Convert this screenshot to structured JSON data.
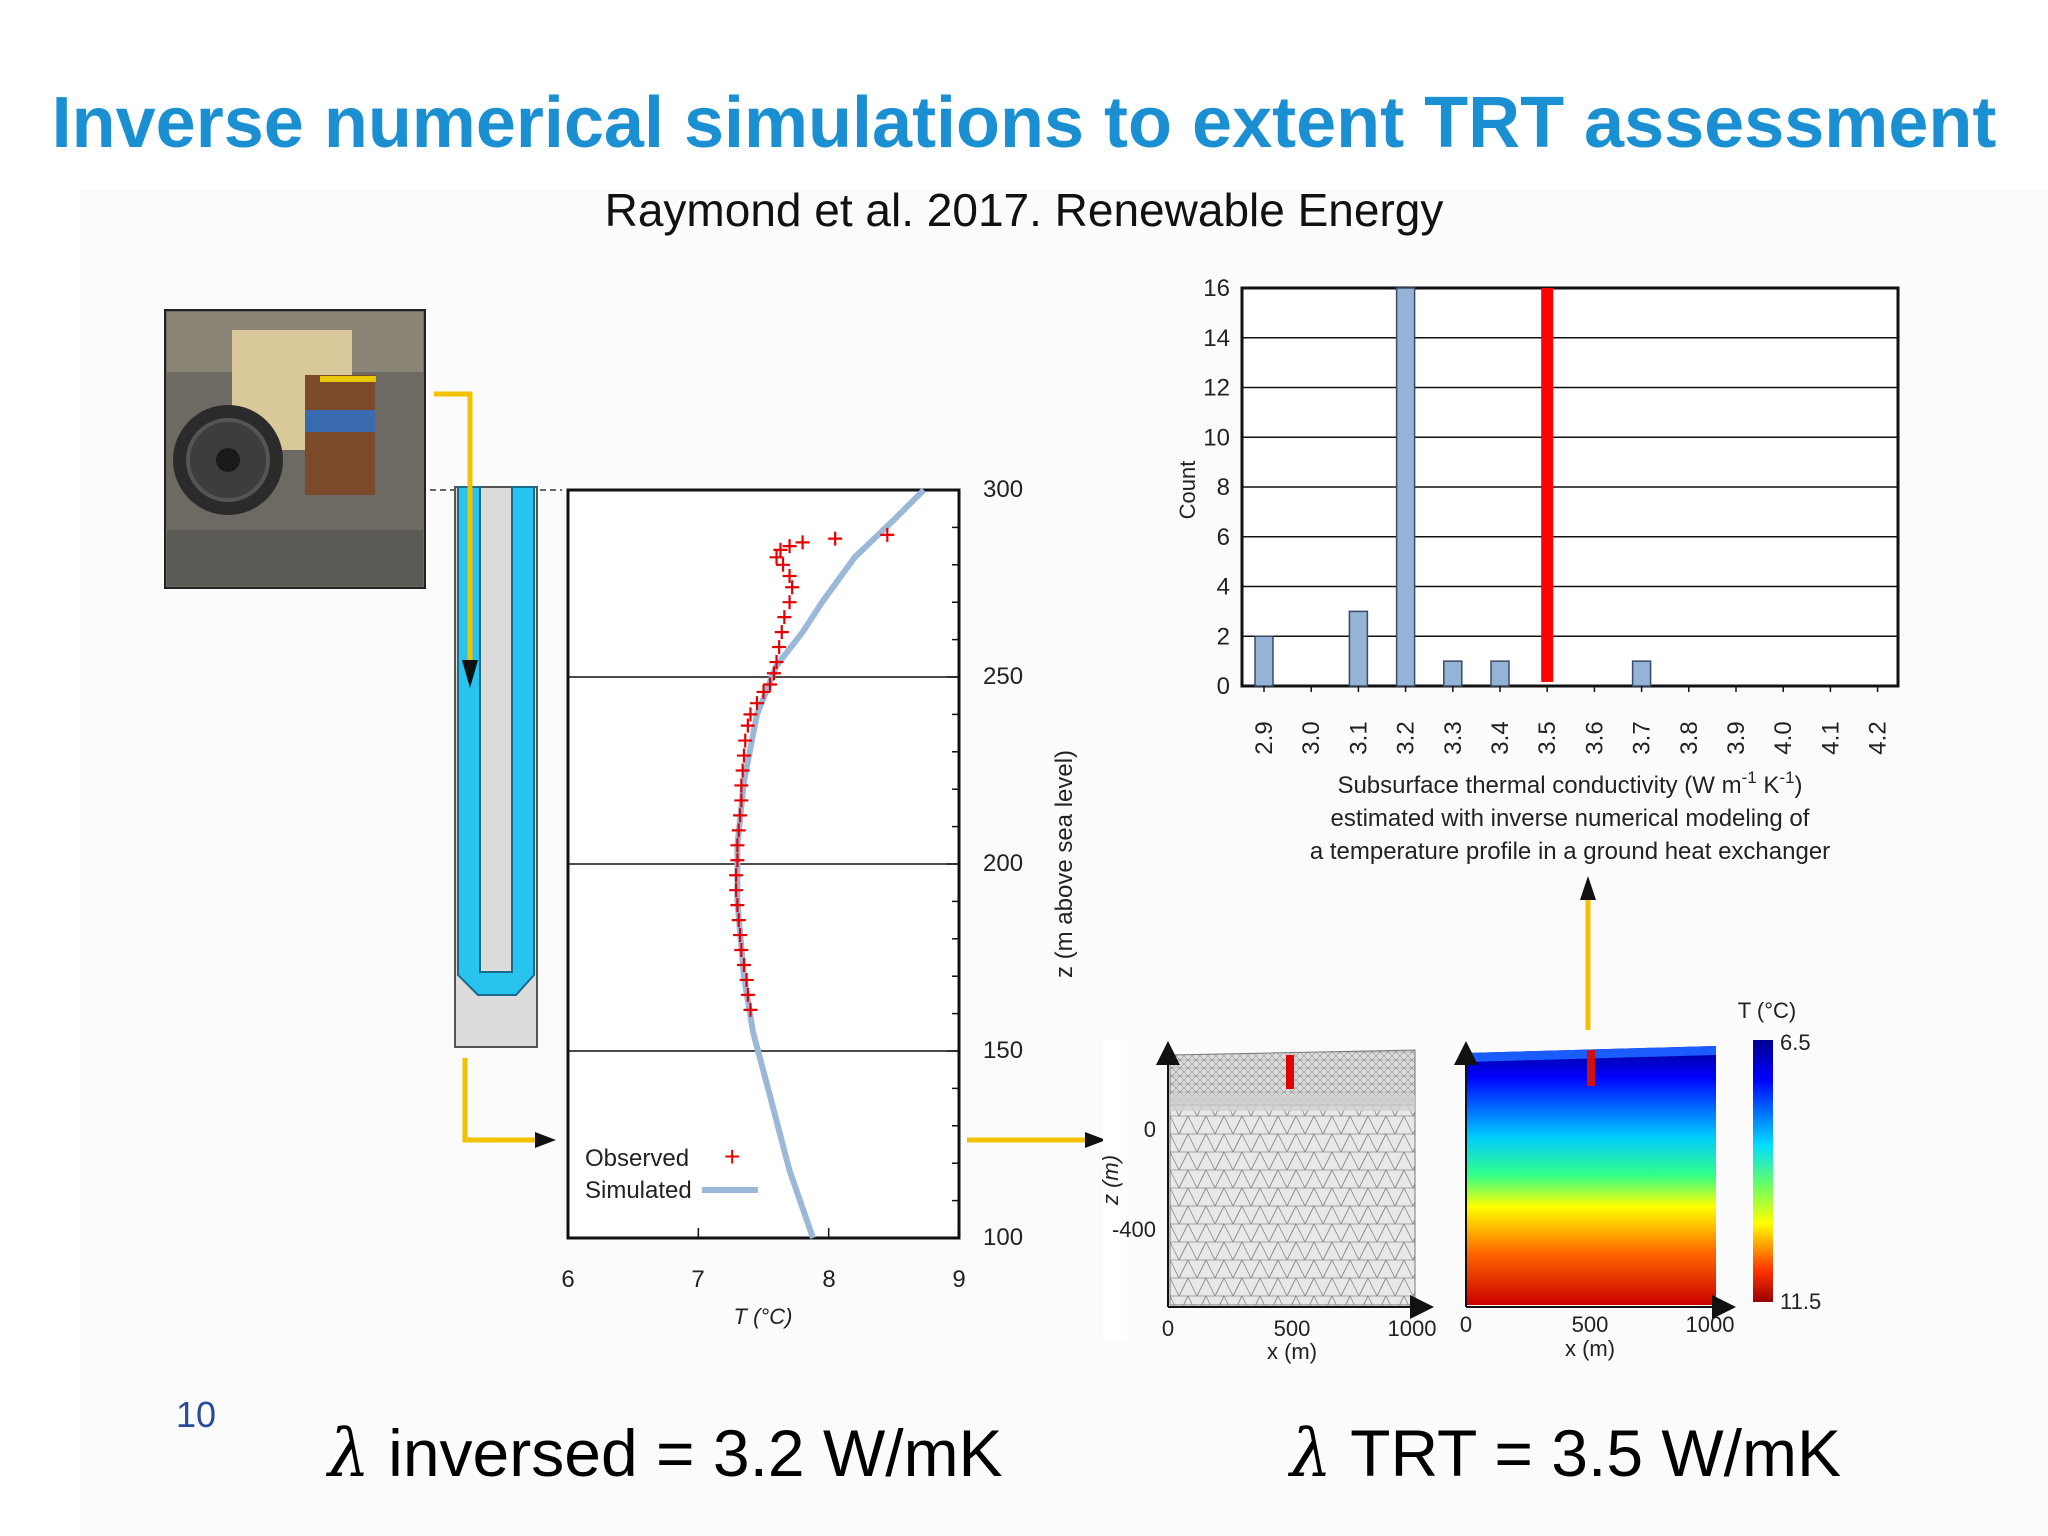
{
  "title": "Inverse numerical simulations to extent TRT assessment",
  "citation": "Raymond et al. 2017. Renewable Energy",
  "page_number": "10",
  "equations": {
    "inverse": {
      "symbol": "λ",
      "text": " inversed = 3.2 W/mK"
    },
    "trt": {
      "symbol": "λ",
      "text": " TRT = 3.5 W/mK"
    }
  },
  "profile_chart": {
    "x_label": "T (°C)",
    "y_label": "z (m above sea level)",
    "x_ticks": [
      "6",
      "7",
      "8",
      "9"
    ],
    "y_ticks": [
      "300",
      "250",
      "200",
      "150",
      "100"
    ],
    "legend_observed": "Observed",
    "legend_simulated": "Simulated"
  },
  "histogram": {
    "y_label": "Count",
    "caption_line1": "Subsurface thermal conductivity (W m",
    "caption_sup1": "-1",
    "caption_mid": " K",
    "caption_sup2": "-1",
    "caption_end": ")",
    "caption_line2": "estimated with inverse numerical modeling of",
    "caption_line3": "a temperature profile in a ground heat exchanger"
  },
  "mesh_panel": {
    "y_label": "z (m)",
    "x_label": "x (m)",
    "y_ticks": [
      "0",
      "-400"
    ],
    "x_ticks": [
      "0",
      "500",
      "1000"
    ]
  },
  "temperature_panel": {
    "x_label": "x (m)",
    "x_ticks": [
      "0",
      "500",
      "1000"
    ],
    "colorbar_title": "T (°C)",
    "colorbar_top": "6.5",
    "colorbar_bottom": "11.5"
  },
  "colors": {
    "title": "#1a8fd1",
    "bar_fill": "#94b3d6",
    "trt_line": "#ff0000",
    "arrow": "#f2c100",
    "observed": "#e60000",
    "simulated": "#9bb8d8"
  },
  "chart_data": [
    {
      "type": "bar",
      "y_label": "Count",
      "categories": [
        "2.9",
        "3.0",
        "3.1",
        "3.2",
        "3.3",
        "3.4",
        "3.5",
        "3.6",
        "3.7",
        "3.8",
        "3.9",
        "4.0",
        "4.1",
        "4.2"
      ],
      "values": [
        2,
        0,
        3,
        16,
        1,
        1,
        0,
        0,
        1,
        0,
        0,
        0,
        0,
        0
      ],
      "ylim": [
        0,
        16
      ],
      "y_ticks": [
        0,
        2,
        4,
        6,
        8,
        10,
        12,
        14,
        16
      ],
      "reference_line": {
        "x": 3.5
      }
    },
    {
      "type": "scatter",
      "x_label": "T (°C)",
      "y_label": "z (m above sea level)",
      "xlim": [
        6,
        9
      ],
      "ylim": [
        100,
        300
      ],
      "grid_y": [
        250,
        200,
        150
      ],
      "series": [
        {
          "name": "Observed",
          "points": [
            [
              8.45,
              288
            ],
            [
              8.05,
              287
            ],
            [
              7.8,
              286
            ],
            [
              7.7,
              285
            ],
            [
              7.63,
              284
            ],
            [
              7.6,
              282
            ],
            [
              7.65,
              280
            ],
            [
              7.7,
              277
            ],
            [
              7.72,
              274
            ],
            [
              7.7,
              270
            ],
            [
              7.66,
              266
            ],
            [
              7.64,
              262
            ],
            [
              7.62,
              258
            ],
            [
              7.6,
              254
            ],
            [
              7.58,
              251
            ],
            [
              7.55,
              248
            ],
            [
              7.5,
              246
            ],
            [
              7.45,
              243
            ],
            [
              7.4,
              240
            ],
            [
              7.38,
              237
            ],
            [
              7.36,
              233
            ],
            [
              7.35,
              229
            ],
            [
              7.34,
              225
            ],
            [
              7.33,
              221
            ],
            [
              7.33,
              217
            ],
            [
              7.32,
              213
            ],
            [
              7.31,
              209
            ],
            [
              7.3,
              205
            ],
            [
              7.3,
              201
            ],
            [
              7.29,
              197
            ],
            [
              7.29,
              193
            ],
            [
              7.3,
              189
            ],
            [
              7.31,
              185
            ],
            [
              7.32,
              181
            ],
            [
              7.33,
              177
            ],
            [
              7.35,
              173
            ],
            [
              7.37,
              169
            ],
            [
              7.38,
              165
            ],
            [
              7.4,
              161
            ]
          ]
        },
        {
          "name": "Simulated",
          "points": [
            [
              8.73,
              300
            ],
            [
              8.5,
              292
            ],
            [
              8.2,
              282
            ],
            [
              7.95,
              270
            ],
            [
              7.8,
              262
            ],
            [
              7.6,
              253
            ],
            [
              7.45,
              240
            ],
            [
              7.35,
              222
            ],
            [
              7.3,
              205
            ],
            [
              7.3,
              190
            ],
            [
              7.35,
              170
            ],
            [
              7.42,
              155
            ],
            [
              7.55,
              138
            ],
            [
              7.7,
              118
            ],
            [
              7.88,
              100
            ]
          ]
        }
      ]
    }
  ]
}
